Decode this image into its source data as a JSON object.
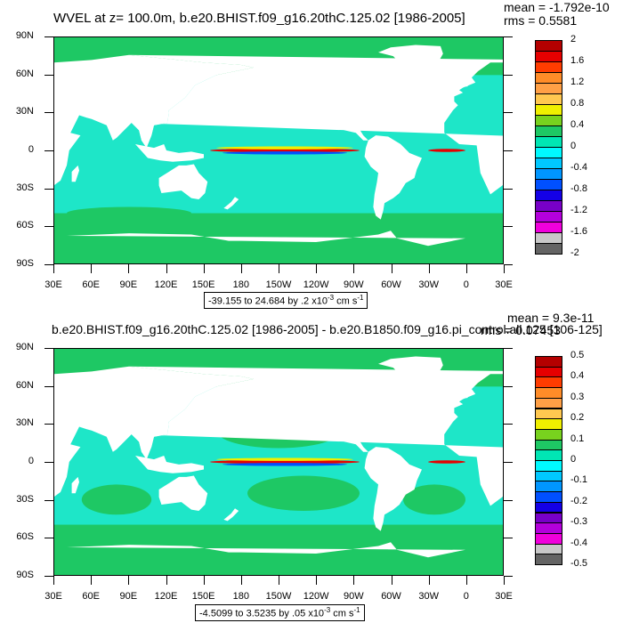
{
  "panels": [
    {
      "title": "WVEL at z= 100.0m, b.e20.BHIST.f09_g16.20thC.125.02 [1986-2005]",
      "stat_mean": "mean = -1.792e-10",
      "stat_rms": "rms = 0.5581",
      "caption_main": "-39.155 to 24.684 by .2 x10",
      "caption_exp": "-3",
      "caption_unit": " cm s",
      "caption_unit_exp": "-1",
      "colorbar_labels": [
        "2",
        "1.6",
        "1.2",
        "0.8",
        "0.4",
        "0",
        "-0.4",
        "-0.8",
        "-1.2",
        "-1.6",
        "-2"
      ],
      "colors": [
        "#b40000",
        "#e60000",
        "#ff3c00",
        "#ff8c28",
        "#ffa046",
        "#ffc850",
        "#f0f000",
        "#78d21e",
        "#1ec864",
        "#00e6b4",
        "#00faff",
        "#00c8ff",
        "#0096ff",
        "#0050ff",
        "#1400e6",
        "#7800c8",
        "#b400dc",
        "#f000dc",
        "#c8c8c8",
        "#646464"
      ]
    },
    {
      "title": "b.e20.BHIST.f09_g16.20thC.125.02 [1986-2005] - b.e20.B1850.f09_g16.pi_control.all.125 [106-125]",
      "stat_mean": "mean = 9.3e-11",
      "stat_rms": "rms = 0.07453",
      "caption_main": "-4.5099 to 3.5235 by .05 x10",
      "caption_exp": "-3",
      "caption_unit": " cm s",
      "caption_unit_exp": "-1",
      "colorbar_labels": [
        "0.5",
        "0.4",
        "0.3",
        "0.2",
        "0.1",
        "0",
        "-0.1",
        "-0.2",
        "-0.3",
        "-0.4",
        "-0.5"
      ],
      "colors": [
        "#b40000",
        "#e60000",
        "#ff3c00",
        "#ff8c28",
        "#ffa046",
        "#ffc850",
        "#f0f000",
        "#78d21e",
        "#1ec864",
        "#00e6b4",
        "#00faff",
        "#00c8ff",
        "#0096ff",
        "#0050ff",
        "#1400e6",
        "#7800c8",
        "#b400dc",
        "#f000dc",
        "#c8c8c8",
        "#646464"
      ]
    }
  ],
  "axes": {
    "lat_labels": [
      "90N",
      "60N",
      "30N",
      "0",
      "30S",
      "60S",
      "90S"
    ],
    "lon_labels": [
      "30E",
      "60E",
      "90E",
      "120E",
      "150E",
      "180",
      "150W",
      "120W",
      "90W",
      "60W",
      "30W",
      "0",
      "30E"
    ]
  },
  "map_colors": {
    "ocean_main": "#1ee6c8",
    "ocean_green": "#1ec864",
    "land": "#ffffff",
    "eq_red": "#e60000",
    "eq_yellow": "#f0f000",
    "eq_blue": "#0050ff"
  }
}
